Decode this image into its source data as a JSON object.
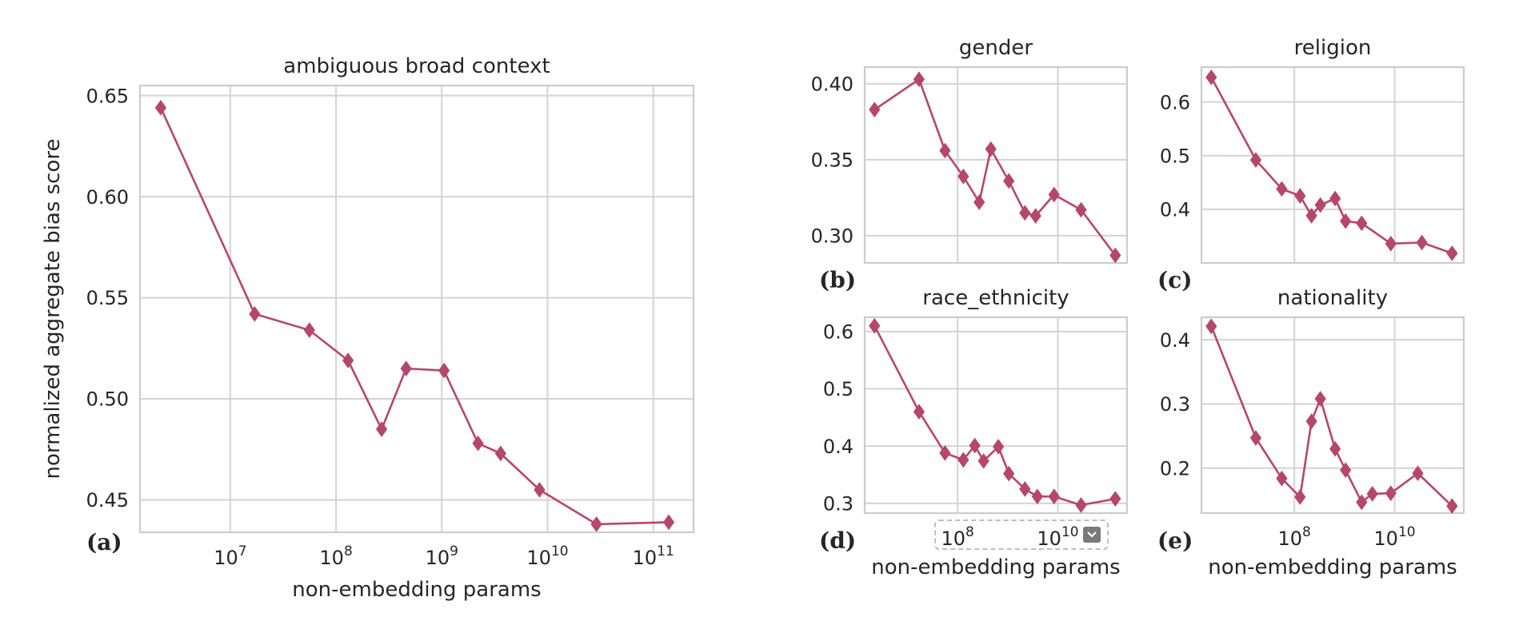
{
  "colors": {
    "line": "#b5476b",
    "grid": "#d3d3d3",
    "spine": "#cccccc"
  },
  "chart_data": [
    {
      "panel": "(a)",
      "type": "line",
      "title": "ambiguous broad context",
      "xlabel": "non-embedding params",
      "ylabel": "normalized aggregate bias score",
      "xscale": "log",
      "xlim": [
        1400000.0,
        240000000000.0
      ],
      "ylim": [
        0.434,
        0.655
      ],
      "xticks": [
        10000000.0,
        100000000.0,
        1000000000.0,
        10000000000.0,
        100000000000.0
      ],
      "xtick_labels": [
        [
          "10",
          "7"
        ],
        [
          "10",
          "8"
        ],
        [
          "10",
          "9"
        ],
        [
          "10",
          "10"
        ],
        [
          "10",
          "11"
        ]
      ],
      "yticks": [
        0.45,
        0.5,
        0.55,
        0.6,
        0.65
      ],
      "ytick_labels": [
        "0.45",
        "0.50",
        "0.55",
        "0.60",
        "0.65"
      ],
      "x": [
        2200000.0,
        17000000.0,
        56000000.0,
        130000000.0,
        270000000.0,
        460000000.0,
        1050000000.0,
        2200000000.0,
        3600000000.0,
        8400000000.0,
        29000000000.0,
        140000000000.0
      ],
      "y": [
        0.644,
        0.542,
        0.534,
        0.519,
        0.485,
        0.515,
        0.514,
        0.478,
        0.473,
        0.455,
        0.438,
        0.439
      ]
    },
    {
      "panel": "(b)",
      "type": "line",
      "title": "gender",
      "xlabel": "",
      "xscale": "log",
      "xlim": [
        1400000.0,
        240000000000.0
      ],
      "ylim": [
        0.282,
        0.411
      ],
      "xticks": [
        100000000.0,
        10000000000.0
      ],
      "xtick_labels": [],
      "yticks": [
        0.3,
        0.35,
        0.4
      ],
      "ytick_labels": [
        "0.30",
        "0.35",
        "0.40"
      ],
      "x": [
        2200000.0,
        17000000.0,
        56000000.0,
        130000000.0,
        270000000.0,
        460000000.0,
        1050000000.0,
        2200000000.0,
        3600000000.0,
        8400000000.0,
        29000000000.0,
        140000000000.0
      ],
      "y": [
        0.383,
        0.403,
        0.356,
        0.339,
        0.322,
        0.357,
        0.336,
        0.315,
        0.313,
        0.327,
        0.317,
        0.287
      ]
    },
    {
      "panel": "(c)",
      "type": "line",
      "title": "religion",
      "xlabel": "",
      "xscale": "log",
      "xlim": [
        1400000.0,
        240000000000.0
      ],
      "ylim": [
        0.3,
        0.665
      ],
      "xticks": [
        100000000.0,
        10000000000.0
      ],
      "xtick_labels": [],
      "yticks": [
        0.4,
        0.5,
        0.6
      ],
      "ytick_labels": [
        "0.4",
        "0.5",
        "0.6"
      ],
      "x": [
        2200000.0,
        17000000.0,
        56000000.0,
        130000000.0,
        220000000.0,
        330000000.0,
        650000000.0,
        1050000000.0,
        2200000000.0,
        8400000000.0,
        35000000000.0,
        140000000000.0
      ],
      "y": [
        0.646,
        0.492,
        0.438,
        0.425,
        0.388,
        0.408,
        0.42,
        0.378,
        0.374,
        0.336,
        0.338,
        0.318
      ]
    },
    {
      "panel": "(d)",
      "type": "line",
      "title": "race_ethnicity",
      "xlabel": "non-embedding params",
      "xscale": "log",
      "xlim": [
        1400000.0,
        240000000000.0
      ],
      "ylim": [
        0.283,
        0.625
      ],
      "xticks": [
        100000000.0,
        10000000000.0
      ],
      "xtick_labels": [
        [
          "10",
          "8"
        ],
        [
          "10",
          "10"
        ]
      ],
      "yticks": [
        0.3,
        0.4,
        0.5,
        0.6
      ],
      "ytick_labels": [
        "0.3",
        "0.4",
        "0.5",
        "0.6"
      ],
      "x": [
        2200000.0,
        17000000.0,
        56000000.0,
        130000000.0,
        220000000.0,
        330000000.0,
        650000000.0,
        1050000000.0,
        2200000000.0,
        3900000000.0,
        8400000000.0,
        29000000000.0,
        140000000000.0
      ],
      "y": [
        0.61,
        0.46,
        0.388,
        0.376,
        0.401,
        0.374,
        0.399,
        0.352,
        0.325,
        0.312,
        0.312,
        0.297,
        0.308
      ]
    },
    {
      "panel": "(e)",
      "type": "line",
      "title": "nationality",
      "xlabel": "non-embedding params",
      "xscale": "log",
      "xlim": [
        1400000.0,
        240000000000.0
      ],
      "ylim": [
        0.13,
        0.435
      ],
      "xticks": [
        100000000.0,
        10000000000.0
      ],
      "xtick_labels": [
        [
          "10",
          "8"
        ],
        [
          "10",
          "10"
        ]
      ],
      "yticks": [
        0.2,
        0.3,
        0.4
      ],
      "ytick_labels": [
        "0.2",
        "0.3",
        "0.4"
      ],
      "x": [
        2200000.0,
        17000000.0,
        56000000.0,
        130000000.0,
        220000000.0,
        330000000.0,
        650000000.0,
        1050000000.0,
        2200000000.0,
        3600000000.0,
        8400000000.0,
        29000000000.0,
        140000000000.0
      ],
      "y": [
        0.421,
        0.247,
        0.184,
        0.155,
        0.273,
        0.308,
        0.23,
        0.197,
        0.147,
        0.16,
        0.161,
        0.192,
        0.141
      ]
    }
  ]
}
